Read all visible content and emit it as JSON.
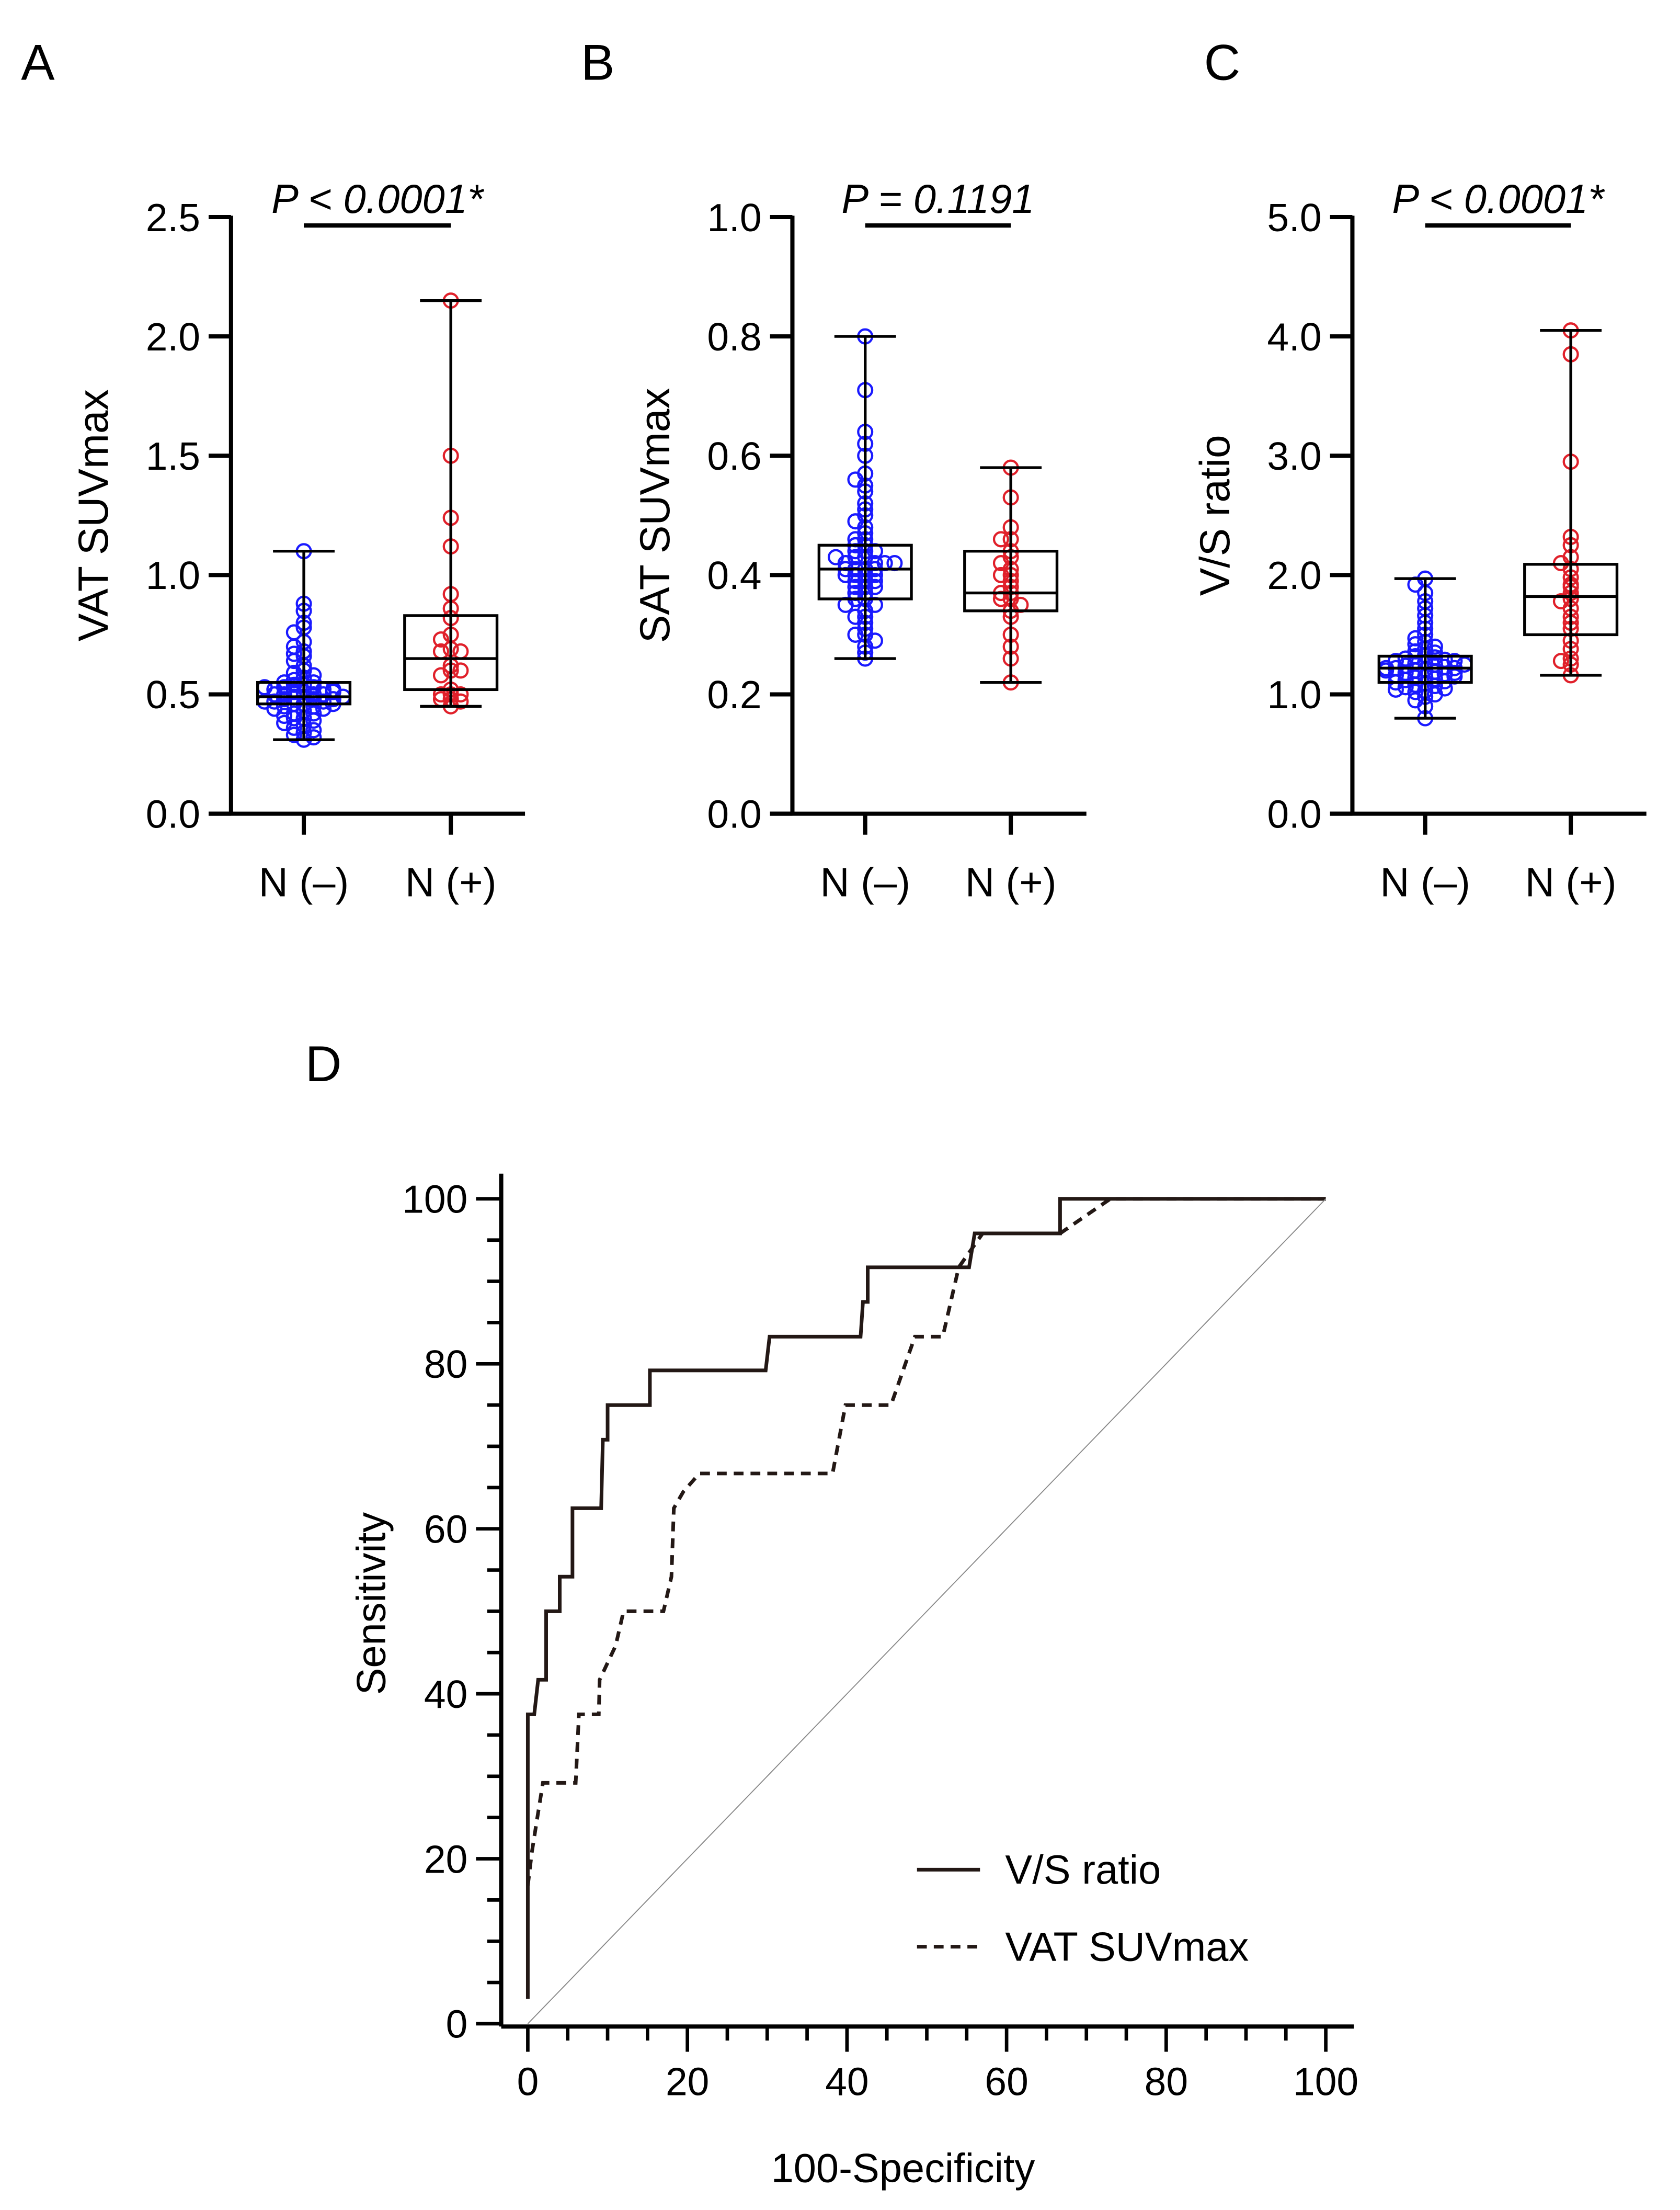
{
  "colors": {
    "neg": "#1a1aff",
    "pos": "#e0202a",
    "axis": "#000000",
    "roc": "#231815"
  },
  "chart_data": [
    {
      "panel": "A",
      "type": "box-scatter",
      "ylabel": "VAT SUVmax",
      "ylim": [
        0,
        2.5
      ],
      "yticks": [
        "0.0",
        "0.5",
        "1.0",
        "1.5",
        "2.0",
        "2.5"
      ],
      "ytick_values": [
        0,
        0.5,
        1.0,
        1.5,
        2.0,
        2.5
      ],
      "categories": [
        "N (–)",
        "N (+)"
      ],
      "p_text": "P < 0.0001*",
      "boxes": [
        {
          "min": 0.31,
          "q1": 0.46,
          "median": 0.49,
          "q3": 0.55,
          "max": 1.1
        },
        {
          "min": 0.45,
          "q1": 0.52,
          "median": 0.65,
          "q3": 0.83,
          "max": 2.15
        }
      ],
      "points": [
        [
          1.1,
          0.88,
          0.85,
          0.8,
          0.78,
          0.76,
          0.72,
          0.7,
          0.68,
          0.67,
          0.66,
          0.64,
          0.62,
          0.6,
          0.59,
          0.58,
          0.57,
          0.56,
          0.55,
          0.55,
          0.54,
          0.54,
          0.53,
          0.53,
          0.52,
          0.52,
          0.51,
          0.51,
          0.5,
          0.5,
          0.5,
          0.49,
          0.49,
          0.48,
          0.48,
          0.47,
          0.47,
          0.46,
          0.46,
          0.45,
          0.45,
          0.44,
          0.44,
          0.43,
          0.42,
          0.42,
          0.41,
          0.4,
          0.4,
          0.39,
          0.38,
          0.37,
          0.36,
          0.35,
          0.34,
          0.33,
          0.32,
          0.31,
          0.48,
          0.5,
          0.52,
          0.47,
          0.51,
          0.49,
          0.53,
          0.46
        ],
        [
          2.15,
          1.5,
          1.24,
          1.12,
          0.92,
          0.86,
          0.82,
          0.75,
          0.73,
          0.69,
          0.68,
          0.68,
          0.62,
          0.6,
          0.58,
          0.6,
          0.52,
          0.5,
          0.5,
          0.48,
          0.48,
          0.47,
          0.45,
          0.5
        ]
      ]
    },
    {
      "panel": "B",
      "type": "box-scatter",
      "ylabel": "SAT SUVmax",
      "ylim": [
        0,
        1.0
      ],
      "yticks": [
        "0.0",
        "0.2",
        "0.4",
        "0.6",
        "0.8",
        "1.0"
      ],
      "ytick_values": [
        0,
        0.2,
        0.4,
        0.6,
        0.8,
        1.0
      ],
      "categories": [
        "N (–)",
        "N (+)"
      ],
      "p_text": "P = 0.1191",
      "boxes": [
        {
          "min": 0.26,
          "q1": 0.36,
          "median": 0.41,
          "q3": 0.45,
          "max": 0.8
        },
        {
          "min": 0.22,
          "q1": 0.34,
          "median": 0.37,
          "q3": 0.44,
          "max": 0.58
        }
      ],
      "points": [
        [
          0.8,
          0.71,
          0.64,
          0.62,
          0.6,
          0.57,
          0.56,
          0.55,
          0.54,
          0.52,
          0.51,
          0.5,
          0.49,
          0.48,
          0.47,
          0.46,
          0.46,
          0.45,
          0.45,
          0.44,
          0.44,
          0.43,
          0.43,
          0.42,
          0.42,
          0.42,
          0.41,
          0.41,
          0.41,
          0.4,
          0.4,
          0.4,
          0.39,
          0.39,
          0.38,
          0.38,
          0.37,
          0.37,
          0.36,
          0.36,
          0.35,
          0.35,
          0.34,
          0.33,
          0.33,
          0.32,
          0.31,
          0.3,
          0.3,
          0.29,
          0.28,
          0.27,
          0.26,
          0.41,
          0.43,
          0.39,
          0.44,
          0.4,
          0.42,
          0.38
        ],
        [
          0.58,
          0.53,
          0.48,
          0.46,
          0.46,
          0.44,
          0.43,
          0.42,
          0.41,
          0.4,
          0.39,
          0.38,
          0.37,
          0.37,
          0.36,
          0.36,
          0.35,
          0.34,
          0.33,
          0.3,
          0.28,
          0.26,
          0.22,
          0.4
        ]
      ]
    },
    {
      "panel": "C",
      "type": "box-scatter",
      "ylabel": "V/S ratio",
      "ylim": [
        0,
        5.0
      ],
      "yticks": [
        "0.0",
        "1.0",
        "2.0",
        "3.0",
        "4.0",
        "5.0"
      ],
      "ytick_values": [
        0,
        1,
        2,
        3,
        4,
        5
      ],
      "categories": [
        "N (–)",
        "N (+)"
      ],
      "p_text": "P < 0.0001*",
      "boxes": [
        {
          "min": 0.8,
          "q1": 1.1,
          "median": 1.22,
          "q3": 1.32,
          "max": 1.97
        },
        {
          "min": 1.16,
          "q1": 1.5,
          "median": 1.82,
          "q3": 2.09,
          "max": 4.05
        }
      ],
      "points": [
        [
          1.97,
          1.92,
          1.85,
          1.78,
          1.72,
          1.66,
          1.6,
          1.55,
          1.5,
          1.47,
          1.44,
          1.42,
          1.4,
          1.38,
          1.36,
          1.35,
          1.33,
          1.32,
          1.31,
          1.3,
          1.29,
          1.28,
          1.27,
          1.26,
          1.25,
          1.24,
          1.23,
          1.22,
          1.22,
          1.21,
          1.2,
          1.19,
          1.18,
          1.17,
          1.16,
          1.15,
          1.14,
          1.13,
          1.12,
          1.11,
          1.1,
          1.09,
          1.08,
          1.07,
          1.06,
          1.05,
          1.04,
          1.03,
          1.02,
          1.0,
          0.98,
          0.95,
          0.9,
          0.8,
          1.22,
          1.25,
          1.18,
          1.28,
          1.15,
          1.2
        ],
        [
          4.05,
          3.85,
          2.95,
          2.32,
          2.25,
          2.15,
          2.1,
          2.05,
          1.98,
          1.9,
          1.85,
          1.8,
          1.78,
          1.72,
          1.65,
          1.6,
          1.55,
          1.45,
          1.38,
          1.3,
          1.28,
          1.25,
          1.16,
          1.92
        ]
      ]
    },
    {
      "panel": "D",
      "type": "line",
      "xlabel": "100-Specificity",
      "ylabel": "Sensitivity",
      "xlim": [
        0,
        100
      ],
      "ylim": [
        0,
        100
      ],
      "xticks": [
        "0",
        "20",
        "40",
        "60",
        "80",
        "100"
      ],
      "yticks": [
        "0",
        "20",
        "40",
        "60",
        "80",
        "100"
      ],
      "tick_values": [
        0,
        20,
        40,
        60,
        80,
        100
      ],
      "legend_position": "bottom-right",
      "series": [
        {
          "name": "V/S ratio",
          "style": "solid",
          "points": [
            [
              0,
              3
            ],
            [
              0,
              37.5
            ],
            [
              0.8,
              37.5
            ],
            [
              1.3,
              41.7
            ],
            [
              2.3,
              41.7
            ],
            [
              2.3,
              50
            ],
            [
              4,
              50
            ],
            [
              4,
              54.2
            ],
            [
              5.6,
              54.2
            ],
            [
              5.6,
              62.5
            ],
            [
              9.2,
              62.5
            ],
            [
              9.4,
              70.8
            ],
            [
              10,
              70.8
            ],
            [
              10,
              75
            ],
            [
              15.3,
              75
            ],
            [
              15.3,
              79.2
            ],
            [
              29.8,
              79.2
            ],
            [
              30.3,
              83.3
            ],
            [
              41.7,
              83.3
            ],
            [
              42,
              87.5
            ],
            [
              42.6,
              87.5
            ],
            [
              42.6,
              91.7
            ],
            [
              55.3,
              91.7
            ],
            [
              56,
              95.8
            ],
            [
              66.7,
              95.8
            ],
            [
              66.7,
              100
            ],
            [
              100,
              100
            ]
          ]
        },
        {
          "name": "VAT SUVmax",
          "style": "dashed",
          "points": [
            [
              0,
              16.7
            ],
            [
              0.5,
              20.8
            ],
            [
              1.2,
              25
            ],
            [
              1.9,
              29.2
            ],
            [
              6,
              29.2
            ],
            [
              6.4,
              37.5
            ],
            [
              8.9,
              37.5
            ],
            [
              9,
              41.7
            ],
            [
              11,
              45.8
            ],
            [
              12,
              50
            ],
            [
              17,
              50
            ],
            [
              18,
              54.2
            ],
            [
              18.3,
              62.5
            ],
            [
              19.5,
              64.5
            ],
            [
              21.5,
              66.7
            ],
            [
              38.2,
              66.7
            ],
            [
              39.8,
              75
            ],
            [
              45.5,
              75
            ],
            [
              48.5,
              83.3
            ],
            [
              52,
              83.3
            ],
            [
              54,
              91.7
            ],
            [
              57,
              95.8
            ],
            [
              66.7,
              95.8
            ],
            [
              73,
              100
            ],
            [
              100,
              100
            ]
          ]
        },
        {
          "name": "reference",
          "style": "diagonal",
          "points": [
            [
              0,
              0
            ],
            [
              100,
              100
            ]
          ]
        }
      ]
    }
  ]
}
